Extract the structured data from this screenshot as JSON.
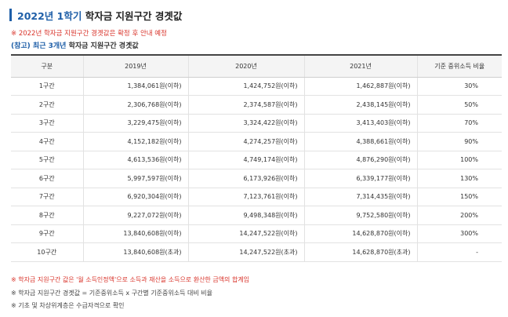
{
  "title": {
    "highlight": "2022년 1학기",
    "rest": " 학자금 지원구간 경곗값"
  },
  "notice": "※ 2022년 학자금 지원구간 경곗값은 확정 후 안내 예정",
  "reference": {
    "prefix": "(참고) 최근 3개년",
    "rest": " 학자금 지원구간 경곗값"
  },
  "table": {
    "headers": [
      "구분",
      "2019년",
      "2020년",
      "2021년",
      "기준 중위소득 비율"
    ],
    "rows": [
      [
        "1구간",
        "1,384,061원(이하)",
        "1,424,752원(이하)",
        "1,462,887원(이하)",
        "30%"
      ],
      [
        "2구간",
        "2,306,768원(이하)",
        "2,374,587원(이하)",
        "2,438,145원(이하)",
        "50%"
      ],
      [
        "3구간",
        "3,229,475원(이하)",
        "3,324,422원(이하)",
        "3,413,403원(이하)",
        "70%"
      ],
      [
        "4구간",
        "4,152,182원(이하)",
        "4,274,257원(이하)",
        "4,388,661원(이하)",
        "90%"
      ],
      [
        "5구간",
        "4,613,536원(이하)",
        "4,749,174원(이하)",
        "4,876,290원(이하)",
        "100%"
      ],
      [
        "6구간",
        "5,997,597원(이하)",
        "6,173,926원(이하)",
        "6,339,177원(이하)",
        "130%"
      ],
      [
        "7구간",
        "6,920,304원(이하)",
        "7,123,761원(이하)",
        "7,314,435원(이하)",
        "150%"
      ],
      [
        "8구간",
        "9,227,072원(이하)",
        "9,498,348원(이하)",
        "9,752,580원(이하)",
        "200%"
      ],
      [
        "9구간",
        "13,840,608원(이하)",
        "14,247,522원(이하)",
        "14,628,870원(이하)",
        "300%"
      ],
      [
        "10구간",
        "13,840,608원(초과)",
        "14,247,522원(초과)",
        "14,628,870원(초과)",
        "-"
      ]
    ]
  },
  "footnotes": [
    "※ 학자금 지원구간 값은 '월 소득인정액'으로 소득과 재산을 소득으로 환산한 금액의 합계임",
    "※ 학자금 지원구간 경곗값 = 기준중위소득 x 구간별 기준중위소득 대비 비율",
    "※ 기초 및 차상위계층은 수급자격으로 확인"
  ],
  "colors": {
    "accent": "#1f5fa8",
    "notice": "#d9342b"
  }
}
